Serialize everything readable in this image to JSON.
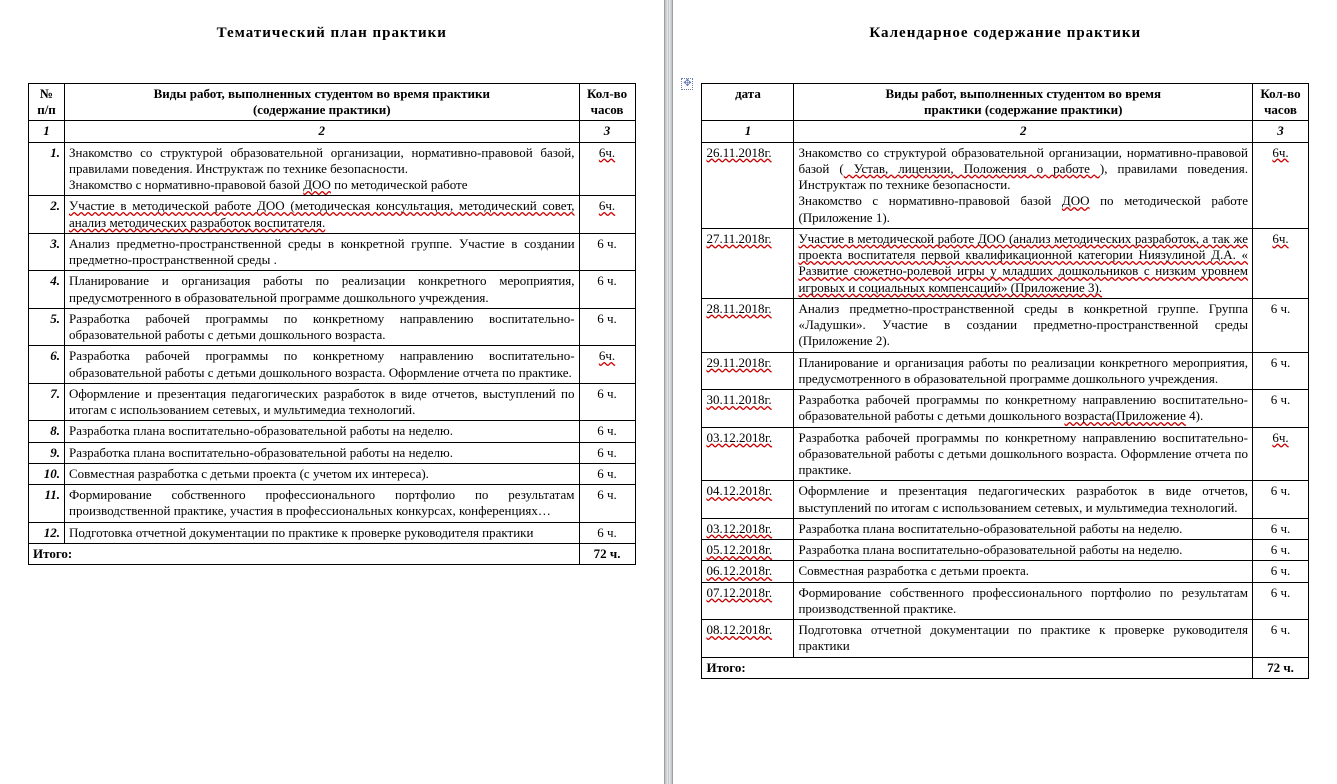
{
  "left": {
    "title": "Тематический  план  практики",
    "columns": {
      "num": "№\nп/п",
      "desc": "Виды работ, выполненных студентом во время практики\n(содержание практики)",
      "hours": "Кол-во\nчасов"
    },
    "colnums": {
      "c1": "1",
      "c2": "2",
      "c3": "3"
    },
    "rows": [
      {
        "n": "1.",
        "hours": "6ч.",
        "hours_spell": true,
        "desc_plain": "Знакомство со структурой образовательной организации, нормативно-правовой базой, правилами поведения. Инструктаж по технике безопасности.\nЗнакомство с нормативно-правовой базой ",
        "desc_spell": "ДОО",
        "desc_tail": " по методической работе"
      },
      {
        "n": "2.",
        "hours": "6ч.",
        "hours_spell": true,
        "desc_spell_full": "Участие в методической работе ДОО (методическая консультация, методический совет, анализ методических разработок воспитателя."
      },
      {
        "n": "3.",
        "hours": "6 ч.",
        "desc_plain": "Анализ предметно-пространственной среды в конкретной группе. Участие в создании предметно-пространственной среды ."
      },
      {
        "n": "4.",
        "hours": "6 ч.",
        "desc_plain": "Планирование и организация работы по реализации конкретного мероприятия, предусмотренного в образовательной программе дошкольного учреждения."
      },
      {
        "n": "5.",
        "hours": "6 ч.",
        "desc_plain": "Разработка рабочей программы  по конкретному направлению воспитательно-образовательной работы с детьми дошкольного возраста."
      },
      {
        "n": "6.",
        "hours": "6ч.",
        "hours_spell": true,
        "desc_plain": "Разработка рабочей программы  по конкретному направлению воспитательно-образовательной работы с детьми дошкольного возраста. Оформление отчета по практике."
      },
      {
        "n": "7.",
        "hours": "6 ч.",
        "desc_plain": "Оформление и презентация педагогических разработок в виде отчетов, выступлений по итогам с использованием сетевых,  и мультимедиа технологий."
      },
      {
        "n": "8.",
        "hours": "6 ч.",
        "desc_plain": "Разработка плана воспитательно-образовательной работы на неделю."
      },
      {
        "n": "9.",
        "hours": "6 ч.",
        "desc_plain": "Разработка плана воспитательно-образовательной работы на неделю."
      },
      {
        "n": "10.",
        "hours": "6 ч.",
        "desc_plain": "Совместная разработка с детьми проекта (с учетом их интереса)."
      },
      {
        "n": "11.",
        "hours": "6 ч.",
        "desc_plain": "Формирование собственного профессионального портфолио по результатам производственной практике, участия в профессиональных конкурсах, конференциях…"
      },
      {
        "n": "12.",
        "hours": "6 ч.",
        "desc_plain": "Подготовка отчетной документации по практике к проверке руководителя практики"
      }
    ],
    "total_label": "Итого:",
    "total_value": "72 ч."
  },
  "right": {
    "title": "Календарное  содержание  практики",
    "columns": {
      "date": "дата",
      "desc": "Виды работ, выполненных студентом во время\nпрактики (содержание практики)",
      "hours": "Кол-во\nчасов"
    },
    "colnums": {
      "c1": "1",
      "c2": "2",
      "c3": "3"
    },
    "rows": [
      {
        "date": "26.11.2018г.",
        "date_spell": true,
        "hours": "6ч.",
        "hours_spell": true,
        "parts": [
          {
            "t": "Знакомство со структурой образовательной организации, нормативно-правовой базой ("
          },
          {
            "t": " Устав, лицензии, Положения о работе ",
            "spell": true
          },
          {
            "t": "), правилами поведения. Инструктаж по технике безопасности.\nЗнакомство с нормативно-правовой базой "
          },
          {
            "t": "ДОО",
            "spell": true
          },
          {
            "t": " по методической работе (Приложение 1)."
          }
        ]
      },
      {
        "date": "27.11.2018г.",
        "date_spell": true,
        "hours": "6ч.",
        "hours_spell": true,
        "parts": [
          {
            "t": "Участие в методической работе ДОО (анализ методических разработок,  а так же   проекта  воспитателя первой  квалификационной категории  Ниязулиной Д.А. « Развитие сюжетно-ролевой игры у младших дошкольников с низким уровнем игровых и социальных  компенсаций» (Приложение 3).",
            "spell": true
          }
        ]
      },
      {
        "date": "28.11.2018г.",
        "date_spell": true,
        "hours": "6 ч.",
        "parts": [
          {
            "t": "Анализ предметно-пространственной среды в конкретной группе. Группа «Ладушки». Участие в создании предметно-пространственной среды (Приложение 2)."
          }
        ]
      },
      {
        "date": "29.11.2018г.",
        "date_spell": true,
        "hours": "6 ч.",
        "parts": [
          {
            "t": "Планирование и организация работы по реализации конкретного мероприятия, предусмотренного в образовательной программе дошкольного учреждения."
          }
        ]
      },
      {
        "date": "30.11.2018г.",
        "date_spell": true,
        "hours": "6 ч.",
        "parts": [
          {
            "t": "Разработка рабочей программы  по конкретному направлению воспитательно-образовательной работы с детьми дошкольного "
          },
          {
            "t": "возраста(Приложение",
            "spell": true
          },
          {
            "t": " 4)."
          }
        ]
      },
      {
        "date": "03.12.2018г.",
        "date_spell": true,
        "hours": "6ч.",
        "hours_spell": true,
        "parts": [
          {
            "t": "Разработка рабочей программы  по конкретному направлению воспитательно-образовательной работы с детьми дошкольного  возраста. Оформление отчета по практике."
          }
        ]
      },
      {
        "date": "04.12.2018г.",
        "date_spell": true,
        "hours": "6 ч.",
        "parts": [
          {
            "t": "Оформление и презентация педагогических разработок в виде отчетов, выступлений по итогам с использованием сетевых,  и мультимедиа технологий."
          }
        ]
      },
      {
        "date": "03.12.2018г.",
        "date_spell": true,
        "hours": "6 ч.",
        "parts": [
          {
            "t": "Разработка плана воспитательно-образовательной работы на неделю."
          }
        ]
      },
      {
        "date": "05.12.2018г.",
        "date_spell": true,
        "hours": "6 ч.",
        "parts": [
          {
            "t": "Разработка плана воспитательно-образовательной работы на неделю."
          }
        ]
      },
      {
        "date": "06.12.2018г.",
        "date_spell": true,
        "hours": "6 ч.",
        "parts": [
          {
            "t": "Совместная разработка с детьми проекта."
          }
        ]
      },
      {
        "date": "07.12.2018г.",
        "date_spell": true,
        "hours": "6 ч.",
        "parts": [
          {
            "t": "Формирование собственного профессионального портфолио по результатам производственной практике."
          }
        ]
      },
      {
        "date": "08.12.2018г.",
        "date_spell": true,
        "hours": "6 ч.",
        "parts": [
          {
            "t": "Подготовка отчетной документации по практике к проверке руководителя практики"
          }
        ]
      }
    ],
    "total_label": "Итого:",
    "total_value": "72 ч."
  },
  "style": {
    "heading_fontsize_pt": 11,
    "body_fontsize_pt": 10,
    "border_color": "#000000",
    "spell_wave_color": "#c00000",
    "gutter_color": "#a8b6d8",
    "font_family": "Times New Roman"
  }
}
